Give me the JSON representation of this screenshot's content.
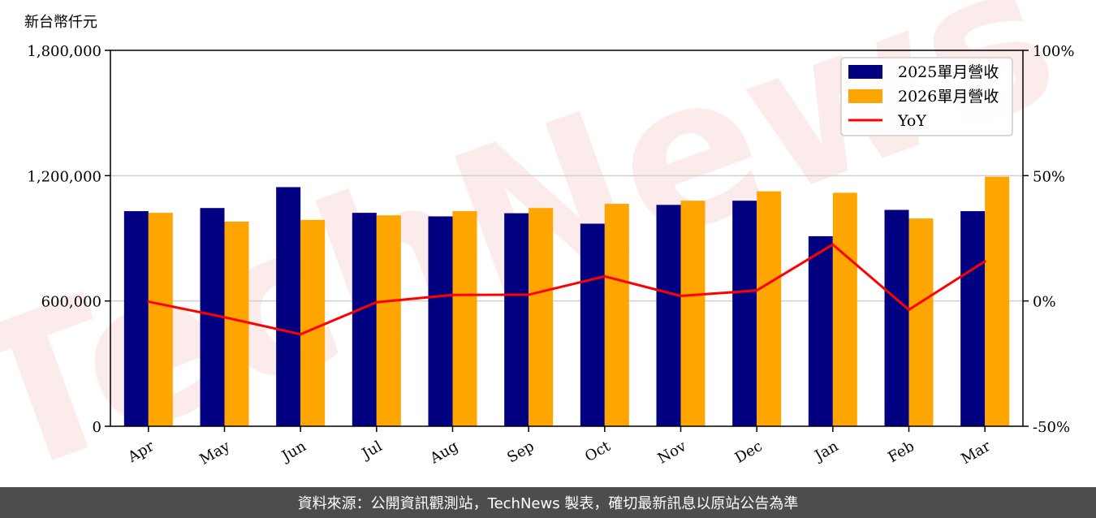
{
  "chart_data": {
    "type": "bar",
    "unit_label": "新台幣仟元",
    "categories": [
      "Apr",
      "May",
      "Jun",
      "Jul",
      "Aug",
      "Sep",
      "Oct",
      "Nov",
      "Dec",
      "Jan",
      "Feb",
      "Mar"
    ],
    "series": [
      {
        "name": "2025單月營收",
        "type": "bar",
        "color": "#000080",
        "values": [
          1030000,
          1045000,
          1145000,
          1022000,
          1005000,
          1020000,
          970000,
          1060000,
          1080000,
          910000,
          1036000,
          1030000
        ]
      },
      {
        "name": "2026單月營收",
        "type": "bar",
        "color": "#ffa500",
        "values": [
          1022000,
          980000,
          988000,
          1010000,
          1030000,
          1045000,
          1065000,
          1080000,
          1125000,
          1118000,
          995000,
          1195000
        ]
      },
      {
        "name": "YoY",
        "type": "line",
        "color": "#ff0000",
        "axis": "right",
        "values": [
          -0.3,
          -6.5,
          -13.3,
          -0.5,
          2.4,
          2.5,
          9.8,
          2.0,
          4.2,
          22.5,
          -3.5,
          15.8
        ]
      }
    ],
    "y_left": {
      "min": 0,
      "max": 1800000,
      "ticks": [
        0,
        600000,
        1200000,
        1800000
      ],
      "tick_labels": [
        "0",
        "600,000",
        "1,200,000",
        "1,800,000"
      ]
    },
    "y_right": {
      "min": -50,
      "max": 100,
      "ticks": [
        -50,
        0,
        50,
        100
      ],
      "tick_labels": [
        "-50%",
        "0%",
        "50%",
        "100%"
      ]
    },
    "grid": "horizontal",
    "legend_position": "top-right"
  },
  "watermark": "TechNews",
  "footer": "資料來源：公開資訊觀測站，TechNews 製表，確切最新訊息以原站公告為準"
}
